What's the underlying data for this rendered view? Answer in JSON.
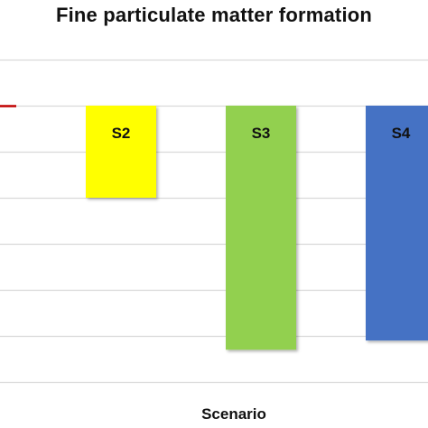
{
  "chart_data": {
    "type": "bar",
    "title": "Fine particulate matter formation",
    "xlabel": "Scenario",
    "ylabel": "",
    "categories": [
      "S2",
      "S3",
      "S4"
    ],
    "values": [
      -2,
      -5.3,
      -5.1
    ],
    "ylim": [
      -6,
      1
    ],
    "grid": true,
    "legend": "none",
    "colors": [
      "#ffff00",
      "#92d050",
      "#4472c4"
    ],
    "baseline_marker_color": "#c00000",
    "gridline_color": "#d9d9d9"
  }
}
